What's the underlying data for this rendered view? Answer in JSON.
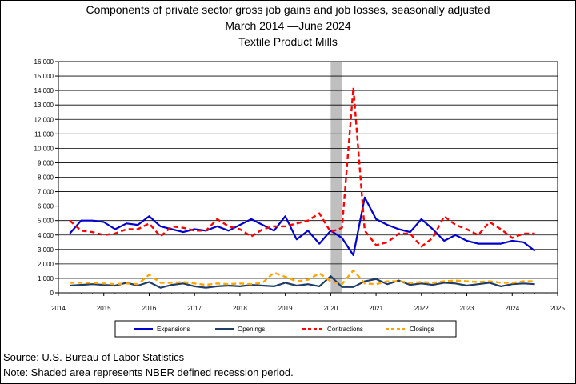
{
  "titles": {
    "line1": "Components of private sector gross job gains and job losses, seasonally adjusted",
    "line2": "March 2014 —June 2024",
    "line3": "Textile Product Mills"
  },
  "footer": {
    "source": "Source: U.S. Bureau of Labor Statistics",
    "note": "Note: Shaded area represents NBER defined recession period."
  },
  "chart_data": {
    "type": "line",
    "title": "Components of private sector gross job gains and job losses, seasonally adjusted",
    "x_start": 2014.25,
    "x_step": 0.25,
    "xlim": [
      2014,
      2025
    ],
    "ylim": [
      0,
      16000
    ],
    "xticks": [
      "2014",
      "2015",
      "2016",
      "2017",
      "2018",
      "2019",
      "2020",
      "2021",
      "2022",
      "2023",
      "2024",
      "2025"
    ],
    "yticks": [
      "0",
      "1,000",
      "2,000",
      "3,000",
      "4,000",
      "5,000",
      "6,000",
      "7,000",
      "8,000",
      "9,000",
      "10,000",
      "11,000",
      "12,000",
      "13,000",
      "14,000",
      "15,000",
      "16,000"
    ],
    "grid": true,
    "legend_position": "bottom",
    "recession_band": [
      2020.0,
      2020.25
    ],
    "series": [
      {
        "name": "Expansions",
        "color": "#0000cc",
        "dash": "solid",
        "values": [
          4100,
          5000,
          5000,
          4900,
          4400,
          4800,
          4700,
          5300,
          4600,
          4400,
          4200,
          4400,
          4300,
          4600,
          4300,
          4700,
          5100,
          4700,
          4300,
          5300,
          3700,
          4300,
          3400,
          4300,
          3800,
          2600,
          6600,
          5100,
          4700,
          4400,
          4200,
          5100,
          4400,
          3600,
          4000,
          3600,
          3400,
          3400,
          3400,
          3600,
          3500,
          2900
        ]
      },
      {
        "name": "Openings",
        "color": "#1f3d66",
        "dash": "solid",
        "values": [
          500,
          550,
          600,
          550,
          500,
          700,
          500,
          750,
          350,
          550,
          650,
          450,
          350,
          450,
          500,
          450,
          550,
          500,
          450,
          700,
          500,
          600,
          450,
          1150,
          400,
          400,
          800,
          950,
          600,
          850,
          550,
          650,
          550,
          700,
          650,
          500,
          600,
          700,
          450,
          600,
          650,
          600
        ]
      },
      {
        "name": "Contractions",
        "color": "#ff0000",
        "dash": "dashed",
        "values": [
          5000,
          4300,
          4200,
          4000,
          4100,
          4400,
          4400,
          4800,
          3900,
          4600,
          4500,
          4300,
          4300,
          5100,
          4600,
          4400,
          3900,
          4400,
          4600,
          4600,
          4800,
          5000,
          5500,
          4200,
          4500,
          14200,
          4300,
          3300,
          3500,
          4100,
          4100,
          3200,
          3800,
          5300,
          4700,
          4400,
          4000,
          4900,
          4400,
          3800,
          4100,
          4100
        ]
      },
      {
        "name": "Closings",
        "color": "#ffa500",
        "dash": "dashed",
        "values": [
          700,
          700,
          700,
          650,
          600,
          650,
          600,
          1250,
          700,
          700,
          750,
          650,
          550,
          650,
          600,
          650,
          600,
          700,
          1400,
          1100,
          800,
          900,
          1350,
          800,
          600,
          1550,
          650,
          600,
          800,
          800,
          700,
          750,
          700,
          800,
          850,
          800,
          750,
          800,
          700,
          700,
          800,
          800
        ]
      }
    ]
  }
}
